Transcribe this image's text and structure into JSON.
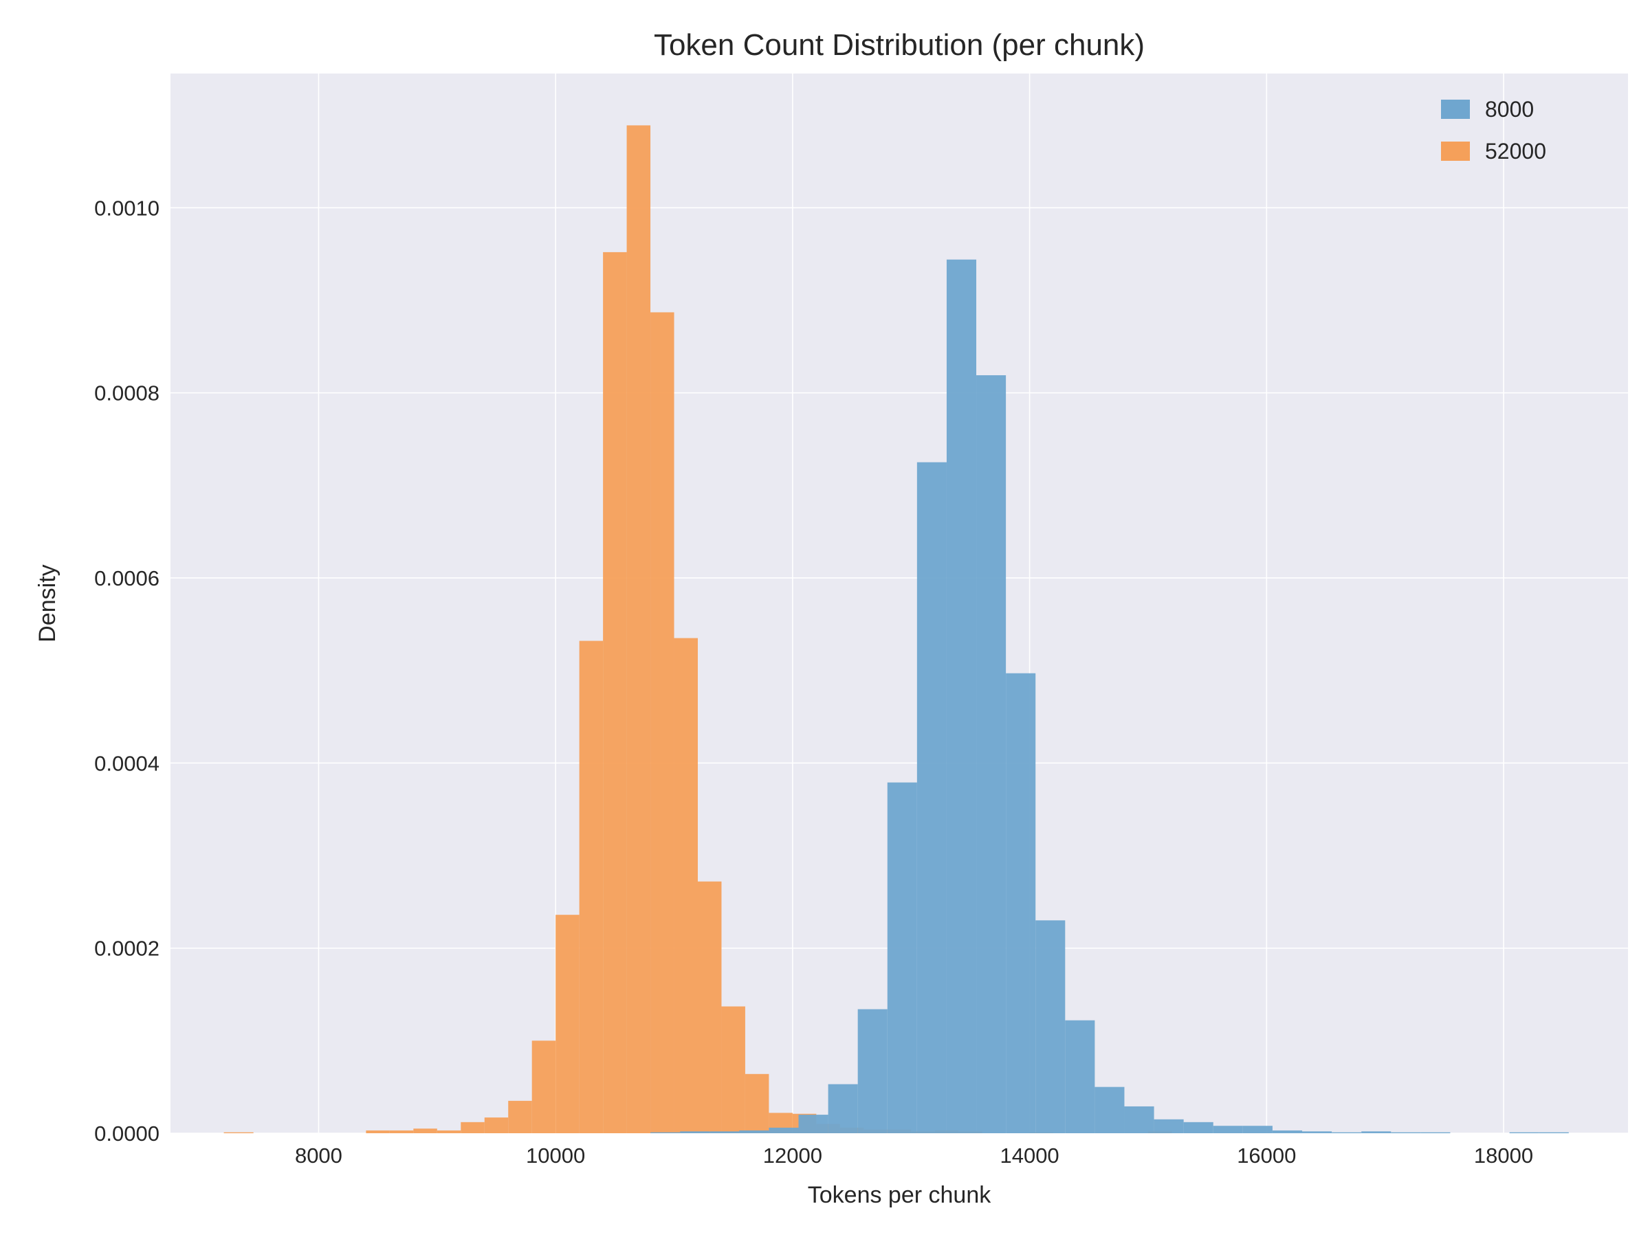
{
  "chart_data": {
    "type": "bar",
    "subtype": "histogram",
    "title": "Token Count Distribution (per chunk)",
    "xlabel": "Tokens per chunk",
    "ylabel": "Density",
    "xlim": [
      6750,
      19050
    ],
    "ylim": [
      0,
      0.001145
    ],
    "xticks": [
      8000,
      10000,
      12000,
      14000,
      16000,
      18000
    ],
    "yticks": [
      0.0,
      0.0002,
      0.0004,
      0.0006,
      0.0008,
      0.001
    ],
    "ytick_labels": [
      "0.0000",
      "0.0002",
      "0.0004",
      "0.0006",
      "0.0008",
      "0.0010"
    ],
    "grid": true,
    "legend_position": "top-right",
    "series": [
      {
        "name": "52000",
        "color": "#f5a05a",
        "bins": [
          {
            "x0": 7200,
            "x1": 7450,
            "density": 1e-06
          },
          {
            "x0": 8400,
            "x1": 8600,
            "density": 3e-06
          },
          {
            "x0": 8600,
            "x1": 8800,
            "density": 3e-06
          },
          {
            "x0": 8800,
            "x1": 9000,
            "density": 5e-06
          },
          {
            "x0": 9000,
            "x1": 9200,
            "density": 3e-06
          },
          {
            "x0": 9200,
            "x1": 9400,
            "density": 1.2e-05
          },
          {
            "x0": 9400,
            "x1": 9600,
            "density": 1.7e-05
          },
          {
            "x0": 9600,
            "x1": 9800,
            "density": 3.5e-05
          },
          {
            "x0": 9800,
            "x1": 10000,
            "density": 0.0001
          },
          {
            "x0": 10000,
            "x1": 10200,
            "density": 0.000236
          },
          {
            "x0": 10200,
            "x1": 10400,
            "density": 0.000532
          },
          {
            "x0": 10400,
            "x1": 10600,
            "density": 0.000952
          },
          {
            "x0": 10600,
            "x1": 10800,
            "density": 0.001089
          },
          {
            "x0": 10800,
            "x1": 11000,
            "density": 0.000887
          },
          {
            "x0": 11000,
            "x1": 11200,
            "density": 0.000535
          },
          {
            "x0": 11200,
            "x1": 11400,
            "density": 0.000272
          },
          {
            "x0": 11400,
            "x1": 11600,
            "density": 0.000137
          },
          {
            "x0": 11600,
            "x1": 11800,
            "density": 6.4e-05
          },
          {
            "x0": 11800,
            "x1": 12000,
            "density": 2.2e-05
          },
          {
            "x0": 12000,
            "x1": 12200,
            "density": 2.1e-05
          },
          {
            "x0": 12200,
            "x1": 12400,
            "density": 1e-05
          },
          {
            "x0": 12400,
            "x1": 12600,
            "density": 6e-06
          },
          {
            "x0": 12600,
            "x1": 12800,
            "density": 4e-06
          },
          {
            "x0": 12800,
            "x1": 13000,
            "density": 4e-06
          },
          {
            "x0": 13000,
            "x1": 13200,
            "density": 2e-06
          },
          {
            "x0": 13200,
            "x1": 13400,
            "density": 3e-06
          },
          {
            "x0": 13400,
            "x1": 13600,
            "density": 2e-06
          },
          {
            "x0": 14000,
            "x1": 14200,
            "density": 1e-06
          },
          {
            "x0": 15000,
            "x1": 15200,
            "density": 2e-06
          }
        ]
      },
      {
        "name": "8000",
        "color": "#6fa6cf",
        "bins": [
          {
            "x0": 10800,
            "x1": 11050,
            "density": 1e-06
          },
          {
            "x0": 11050,
            "x1": 11300,
            "density": 2e-06
          },
          {
            "x0": 11300,
            "x1": 11550,
            "density": 2e-06
          },
          {
            "x0": 11550,
            "x1": 11800,
            "density": 3e-06
          },
          {
            "x0": 11800,
            "x1": 12050,
            "density": 6e-06
          },
          {
            "x0": 12050,
            "x1": 12300,
            "density": 2e-05
          },
          {
            "x0": 12300,
            "x1": 12550,
            "density": 5.3e-05
          },
          {
            "x0": 12550,
            "x1": 12800,
            "density": 0.000134
          },
          {
            "x0": 12800,
            "x1": 13050,
            "density": 0.000379
          },
          {
            "x0": 13050,
            "x1": 13300,
            "density": 0.000725
          },
          {
            "x0": 13300,
            "x1": 13550,
            "density": 0.000944
          },
          {
            "x0": 13550,
            "x1": 13800,
            "density": 0.000819
          },
          {
            "x0": 13800,
            "x1": 14050,
            "density": 0.000497
          },
          {
            "x0": 14050,
            "x1": 14300,
            "density": 0.00023
          },
          {
            "x0": 14300,
            "x1": 14550,
            "density": 0.000122
          },
          {
            "x0": 14550,
            "x1": 14800,
            "density": 5e-05
          },
          {
            "x0": 14800,
            "x1": 15050,
            "density": 2.9e-05
          },
          {
            "x0": 15050,
            "x1": 15300,
            "density": 1.5e-05
          },
          {
            "x0": 15300,
            "x1": 15550,
            "density": 1.2e-05
          },
          {
            "x0": 15550,
            "x1": 15800,
            "density": 8e-06
          },
          {
            "x0": 15800,
            "x1": 16050,
            "density": 8e-06
          },
          {
            "x0": 16050,
            "x1": 16300,
            "density": 3e-06
          },
          {
            "x0": 16300,
            "x1": 16550,
            "density": 2e-06
          },
          {
            "x0": 16550,
            "x1": 16800,
            "density": 1e-06
          },
          {
            "x0": 16800,
            "x1": 17050,
            "density": 2e-06
          },
          {
            "x0": 17050,
            "x1": 17300,
            "density": 1e-06
          },
          {
            "x0": 17300,
            "x1": 17550,
            "density": 1e-06
          },
          {
            "x0": 18050,
            "x1": 18300,
            "density": 1e-06
          },
          {
            "x0": 18300,
            "x1": 18550,
            "density": 1e-06
          }
        ]
      }
    ],
    "legend": [
      {
        "name": "8000",
        "color": "#6fa6cf"
      },
      {
        "name": "52000",
        "color": "#f5a05a"
      }
    ]
  }
}
